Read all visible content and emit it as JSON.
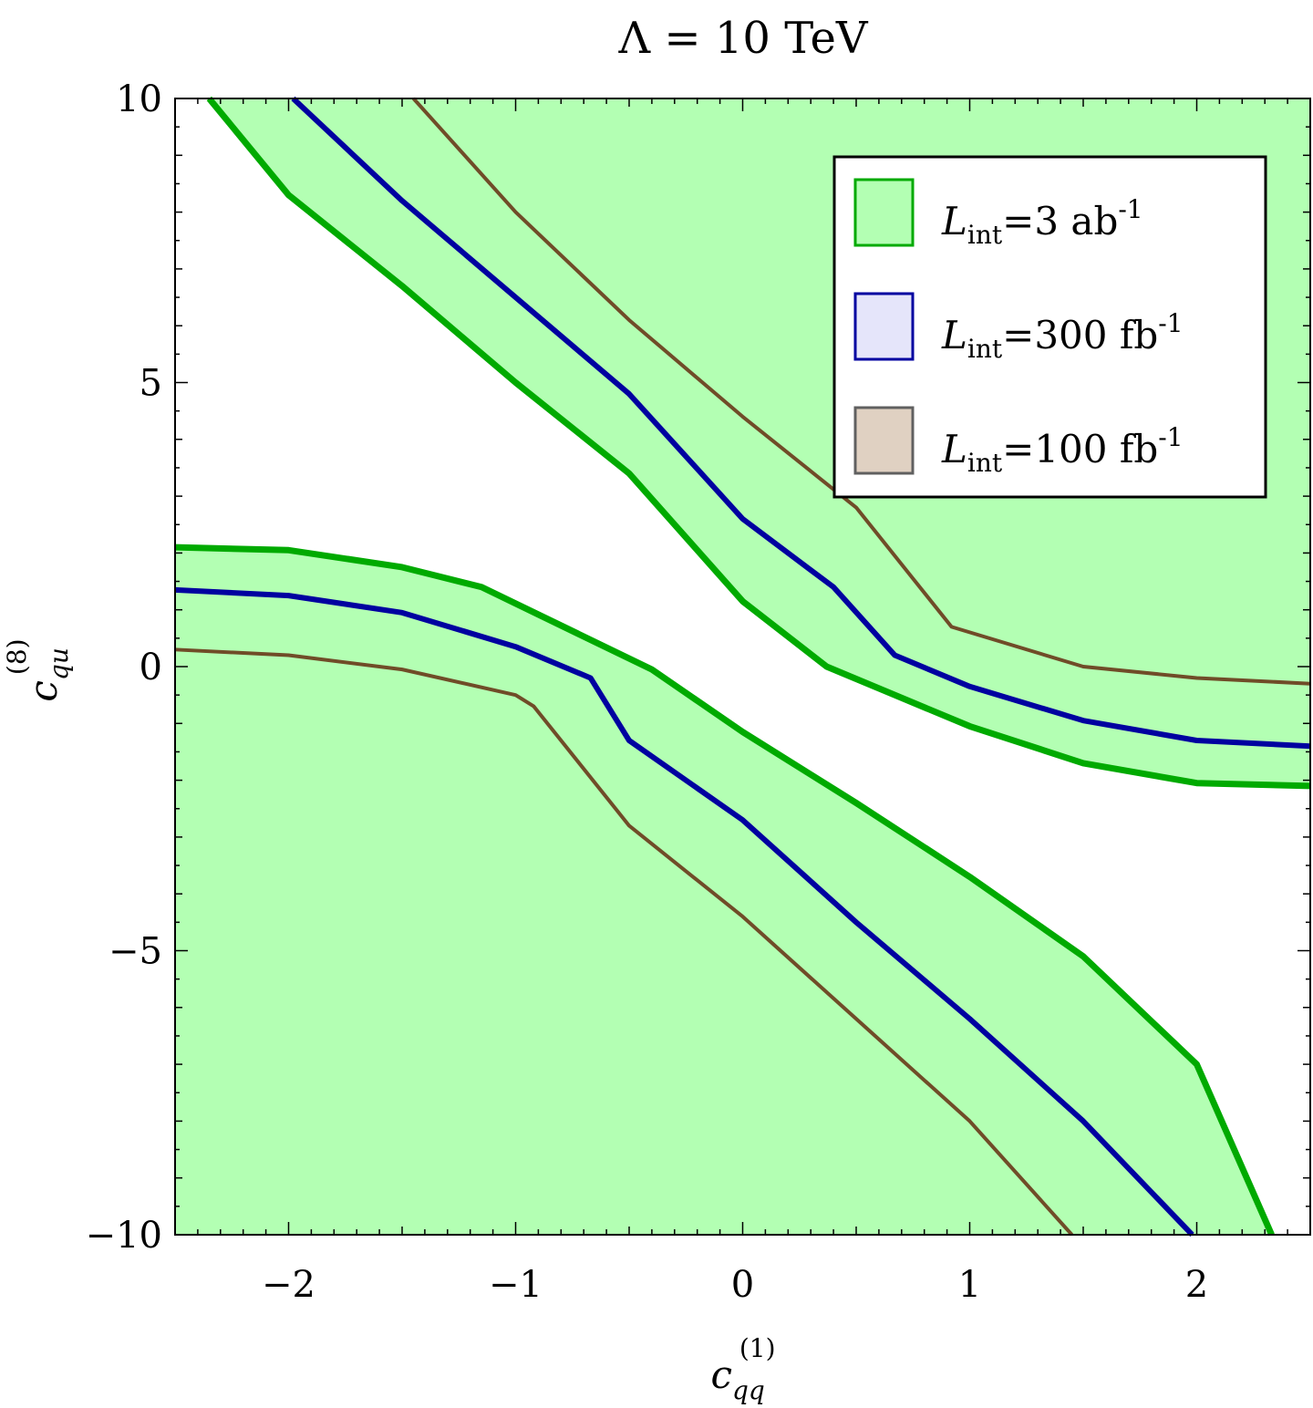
{
  "chart_data": {
    "type": "area",
    "title": "Λ = 10 TeV",
    "xlabel": {
      "base": "c",
      "sub": "qq",
      "sup": "(1)"
    },
    "ylabel": {
      "base": "c",
      "sub": "qu",
      "sup": "(8)"
    },
    "xlim": [
      -2.5,
      2.5
    ],
    "ylim": [
      -10,
      10
    ],
    "x_ticks": [
      {
        "value": -2,
        "label": "−2"
      },
      {
        "value": -1,
        "label": "−1"
      },
      {
        "value": 0,
        "label": "0"
      },
      {
        "value": 1,
        "label": "1"
      },
      {
        "value": 2,
        "label": "2"
      }
    ],
    "y_ticks": [
      {
        "value": -10,
        "label": "−10"
      },
      {
        "value": -5,
        "label": "−5"
      },
      {
        "value": 0,
        "label": "0"
      },
      {
        "value": 5,
        "label": "5"
      },
      {
        "value": 10,
        "label": "10"
      }
    ],
    "grid": false,
    "legend_position": "top-right",
    "colors": {
      "green_fill": "#b3ffb3",
      "green_line": "#00aa00",
      "blue_fill": "#e5e5fa",
      "blue_line": "#0000a0",
      "brown_fill": "#e0d1c2",
      "brown_line": "#704c28",
      "legend_brown_border": "#606060"
    },
    "series": [
      {
        "legend": {
          "base": "L",
          "sub": "int",
          "text": "=3 ab",
          "sup": "-1"
        },
        "fill": "#b3ffb3",
        "line": "#00aa00",
        "upper_boundary": [
          [
            -2.35,
            10
          ],
          [
            -2.0,
            8.3
          ],
          [
            -1.5,
            6.7
          ],
          [
            -1.0,
            5.0
          ],
          [
            -0.5,
            3.4
          ],
          [
            0.0,
            1.15
          ],
          [
            0.37,
            0.0
          ],
          [
            1.0,
            -1.05
          ],
          [
            1.5,
            -1.7
          ],
          [
            2.0,
            -2.05
          ],
          [
            2.5,
            -2.1
          ]
        ],
        "lower_boundary": [
          [
            -2.5,
            2.1
          ],
          [
            -2.0,
            2.05
          ],
          [
            -1.5,
            1.75
          ],
          [
            -1.15,
            1.4
          ],
          [
            -0.4,
            -0.05
          ],
          [
            0.0,
            -1.15
          ],
          [
            0.5,
            -2.4
          ],
          [
            1.0,
            -3.7
          ],
          [
            1.5,
            -5.1
          ],
          [
            2.0,
            -7.0
          ],
          [
            2.33,
            -10
          ]
        ]
      },
      {
        "legend": {
          "base": "L",
          "sub": "int",
          "text": "=300 fb",
          "sup": "-1"
        },
        "fill": "#e5e5fa",
        "line": "#0000a0",
        "upper_boundary": [
          [
            -1.98,
            10
          ],
          [
            -1.5,
            8.2
          ],
          [
            -1.0,
            6.5
          ],
          [
            -0.5,
            4.8
          ],
          [
            0.0,
            2.6
          ],
          [
            0.4,
            1.4
          ],
          [
            0.67,
            0.2
          ],
          [
            1.0,
            -0.35
          ],
          [
            1.5,
            -0.95
          ],
          [
            2.0,
            -1.3
          ],
          [
            2.5,
            -1.4
          ]
        ],
        "lower_boundary": [
          [
            -2.5,
            1.35
          ],
          [
            -2.0,
            1.25
          ],
          [
            -1.5,
            0.95
          ],
          [
            -1.0,
            0.35
          ],
          [
            -0.67,
            -0.2
          ],
          [
            -0.5,
            -1.3
          ],
          [
            0.0,
            -2.7
          ],
          [
            0.5,
            -4.5
          ],
          [
            1.0,
            -6.2
          ],
          [
            1.5,
            -8.0
          ],
          [
            1.98,
            -10
          ]
        ]
      },
      {
        "legend": {
          "base": "L",
          "sub": "int",
          "text": "=100 fb",
          "sup": "-1"
        },
        "fill": "#e0d1c2",
        "line": "#704c28",
        "upper_boundary": [
          [
            -1.45,
            10
          ],
          [
            -1.0,
            8.0
          ],
          [
            -0.5,
            6.1
          ],
          [
            0.0,
            4.4
          ],
          [
            0.5,
            2.8
          ],
          [
            0.92,
            0.7
          ],
          [
            1.5,
            0.0
          ],
          [
            2.0,
            -0.2
          ],
          [
            2.5,
            -0.3
          ]
        ],
        "lower_boundary": [
          [
            -2.5,
            0.3
          ],
          [
            -2.0,
            0.2
          ],
          [
            -1.5,
            -0.05
          ],
          [
            -1.0,
            -0.5
          ],
          [
            -0.92,
            -0.7
          ],
          [
            -0.5,
            -2.8
          ],
          [
            0.0,
            -4.4
          ],
          [
            0.5,
            -6.2
          ],
          [
            1.0,
            -8.0
          ],
          [
            1.45,
            -10
          ]
        ]
      }
    ]
  }
}
